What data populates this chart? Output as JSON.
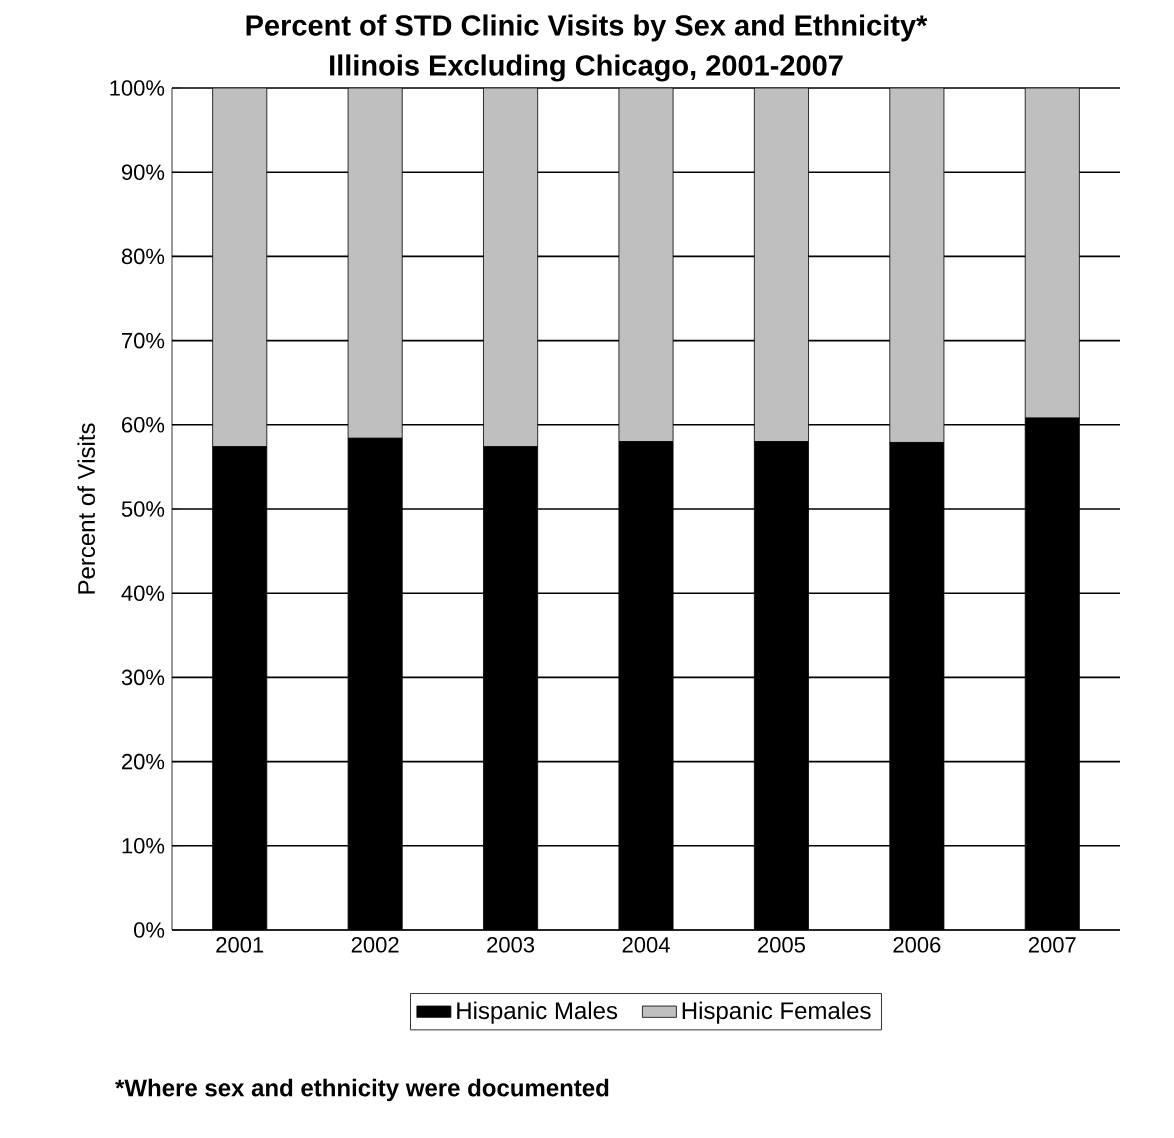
{
  "chart_data": {
    "type": "bar",
    "stacked": true,
    "title": "Percent of STD Clinic Visits by Sex and Ethnicity*\nIllinois Excluding Chicago, 2001-2007",
    "ylabel": "Percent of Visits",
    "categories": [
      "2001",
      "2002",
      "2003",
      "2004",
      "2005",
      "2006",
      "2007"
    ],
    "series": [
      {
        "name": "Hispanic Males",
        "color": "#000000",
        "values": [
          57.4,
          58.4,
          57.4,
          58.0,
          58.0,
          57.9,
          60.8
        ]
      },
      {
        "name": "Hispanic Females",
        "color": "#bfbfbf",
        "values": [
          42.6,
          41.6,
          42.6,
          42.0,
          42.0,
          42.1,
          39.2
        ]
      }
    ],
    "ylim": [
      0,
      100
    ],
    "yticks": [
      {
        "value": 0,
        "label": "0%"
      },
      {
        "value": 10,
        "label": "10%"
      },
      {
        "value": 20,
        "label": "20%"
      },
      {
        "value": 30,
        "label": "30%"
      },
      {
        "value": 40,
        "label": "40%"
      },
      {
        "value": 50,
        "label": "50%"
      },
      {
        "value": 60,
        "label": "60%"
      },
      {
        "value": 70,
        "label": "70%"
      },
      {
        "value": 80,
        "label": "80%"
      },
      {
        "value": 90,
        "label": "90%"
      },
      {
        "value": 100,
        "label": "100%"
      }
    ],
    "grid": "y",
    "legend": "bottom",
    "annotations": [
      "*Where sex and ethnicity were documented"
    ]
  }
}
